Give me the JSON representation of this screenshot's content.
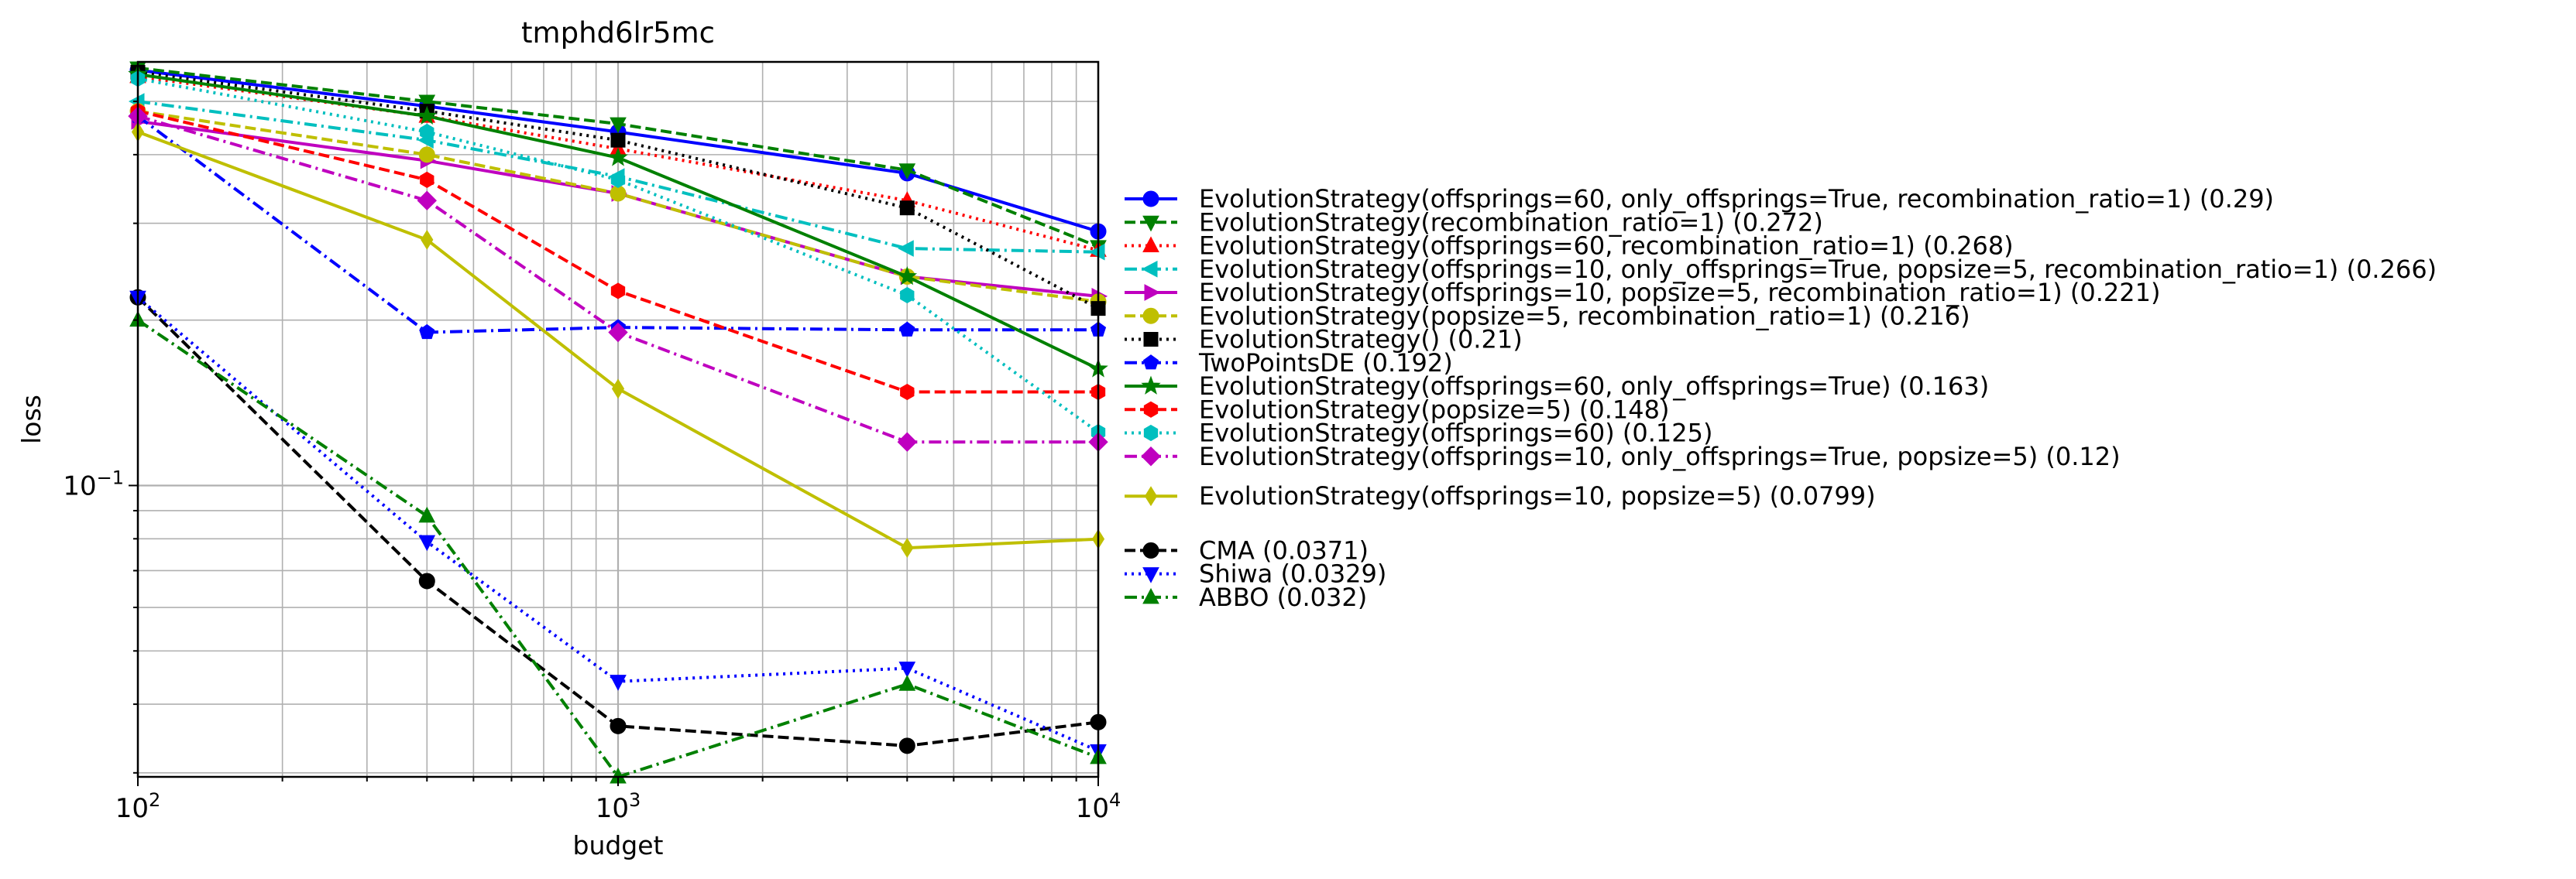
{
  "chart_data": {
    "type": "line",
    "title": "tmphd6lr5mc",
    "xlabel": "budget",
    "ylabel": "loss",
    "x_scale": "log",
    "y_scale": "log",
    "xlim": [
      100,
      10000
    ],
    "ylim": [
      0.0295,
      0.59
    ],
    "grid": true,
    "legend_position": "right",
    "x_ticks": [
      {
        "value": 100,
        "base": "10",
        "exp": "2"
      },
      {
        "value": 1000,
        "base": "10",
        "exp": "3"
      },
      {
        "value": 10000,
        "base": "10",
        "exp": "4"
      }
    ],
    "y_ticks": [
      {
        "value": 0.1,
        "base": "10",
        "exp": "−1"
      }
    ],
    "series": [
      {
        "name": "EvolutionStrategy(offsprings=60, only_offsprings=True, recombination_ratio=1) (0.29)",
        "color": "#0000ff",
        "dash": "solid",
        "marker": "circle",
        "x": [
          100,
          400,
          1000,
          4000,
          10000
        ],
        "y": [
          0.57,
          0.49,
          0.44,
          0.37,
          0.29
        ]
      },
      {
        "name": "EvolutionStrategy(recombination_ratio=1) (0.272)",
        "color": "#008000",
        "dash": "dashed",
        "marker": "triangle-down",
        "x": [
          100,
          400,
          1000,
          4000,
          10000
        ],
        "y": [
          0.575,
          0.5,
          0.455,
          0.375,
          0.272
        ]
      },
      {
        "name": "EvolutionStrategy(offsprings=60, recombination_ratio=1) (0.268)",
        "color": "#ff0000",
        "dash": "dotted",
        "marker": "triangle-up",
        "x": [
          100,
          400,
          1000,
          4000,
          10000
        ],
        "y": [
          0.555,
          0.47,
          0.41,
          0.33,
          0.268
        ]
      },
      {
        "name": "EvolutionStrategy(offsprings=10, only_offsprings=True, popsize=5, recombination_ratio=1) (0.266)",
        "color": "#00bfbf",
        "dash": "dashdot",
        "marker": "triangle-left",
        "x": [
          100,
          400,
          1000,
          4000,
          10000
        ],
        "y": [
          0.5,
          0.425,
          0.365,
          0.27,
          0.266
        ]
      },
      {
        "name": "EvolutionStrategy(offsprings=10, popsize=5, recombination_ratio=1) (0.221)",
        "color": "#bf00bf",
        "dash": "solid",
        "marker": "triangle-right",
        "x": [
          100,
          400,
          1000,
          4000,
          10000
        ],
        "y": [
          0.46,
          0.39,
          0.34,
          0.24,
          0.221
        ]
      },
      {
        "name": "EvolutionStrategy(popsize=5, recombination_ratio=1) (0.216)",
        "color": "#bfbf00",
        "dash": "dashed",
        "marker": "circle",
        "x": [
          100,
          400,
          1000,
          4000,
          10000
        ],
        "y": [
          0.48,
          0.4,
          0.34,
          0.24,
          0.216
        ]
      },
      {
        "name": "EvolutionStrategy() (0.21)",
        "color": "#000000",
        "dash": "dotted",
        "marker": "square",
        "x": [
          100,
          400,
          1000,
          4000,
          10000
        ],
        "y": [
          0.565,
          0.48,
          0.425,
          0.32,
          0.21
        ]
      },
      {
        "name": "TwoPointsDE (0.192)",
        "color": "#0000ff",
        "dash": "dashdot",
        "marker": "pentagon",
        "x": [
          100,
          400,
          1000,
          4000,
          10000
        ],
        "y": [
          0.47,
          0.19,
          0.194,
          0.192,
          0.192
        ]
      },
      {
        "name": "EvolutionStrategy(offsprings=60, only_offsprings=True) (0.163)",
        "color": "#008000",
        "dash": "solid",
        "marker": "star",
        "x": [
          100,
          400,
          1000,
          4000,
          10000
        ],
        "y": [
          0.56,
          0.47,
          0.395,
          0.24,
          0.163
        ]
      },
      {
        "name": "EvolutionStrategy(popsize=5) (0.148)",
        "color": "#ff0000",
        "dash": "dashed",
        "marker": "hexagon",
        "x": [
          100,
          400,
          1000,
          4000,
          10000
        ],
        "y": [
          0.48,
          0.36,
          0.226,
          0.148,
          0.148
        ]
      },
      {
        "name": "EvolutionStrategy(offsprings=60) (0.125)",
        "color": "#00bfbf",
        "dash": "dotted",
        "marker": "hexagon",
        "x": [
          100,
          400,
          1000,
          4000,
          10000
        ],
        "y": [
          0.55,
          0.44,
          0.36,
          0.222,
          0.125
        ]
      },
      {
        "name": "EvolutionStrategy(offsprings=10, only_offsprings=True, popsize=5) (0.12)",
        "color": "#bf00bf",
        "dash": "dashdot",
        "marker": "diamond",
        "x": [
          100,
          400,
          1000,
          4000,
          10000
        ],
        "y": [
          0.47,
          0.33,
          0.19,
          0.12,
          0.12
        ]
      },
      {
        "name": "EvolutionStrategy(offsprings=10, popsize=5) (0.0799)",
        "color": "#bfbf00",
        "dash": "solid",
        "marker": "thin-diamond",
        "x": [
          100,
          400,
          1000,
          4000,
          10000
        ],
        "y": [
          0.44,
          0.28,
          0.15,
          0.077,
          0.0799
        ]
      },
      {
        "name": "CMA (0.0371)",
        "color": "#000000",
        "dash": "dashed",
        "marker": "circle",
        "x": [
          100,
          400,
          1000,
          4000,
          10000
        ],
        "y": [
          0.22,
          0.067,
          0.0365,
          0.0336,
          0.0371
        ]
      },
      {
        "name": "Shiwa (0.0329)",
        "color": "#0000ff",
        "dash": "dotted",
        "marker": "triangle-down",
        "x": [
          100,
          400,
          1000,
          4000,
          10000
        ],
        "y": [
          0.22,
          0.079,
          0.044,
          0.0465,
          0.0329
        ]
      },
      {
        "name": "ABBO (0.032)",
        "color": "#008000",
        "dash": "dashdot",
        "marker": "triangle-up",
        "x": [
          100,
          400,
          1000,
          4000,
          10000
        ],
        "y": [
          0.2,
          0.088,
          0.0295,
          0.0435,
          0.032
        ]
      }
    ]
  }
}
